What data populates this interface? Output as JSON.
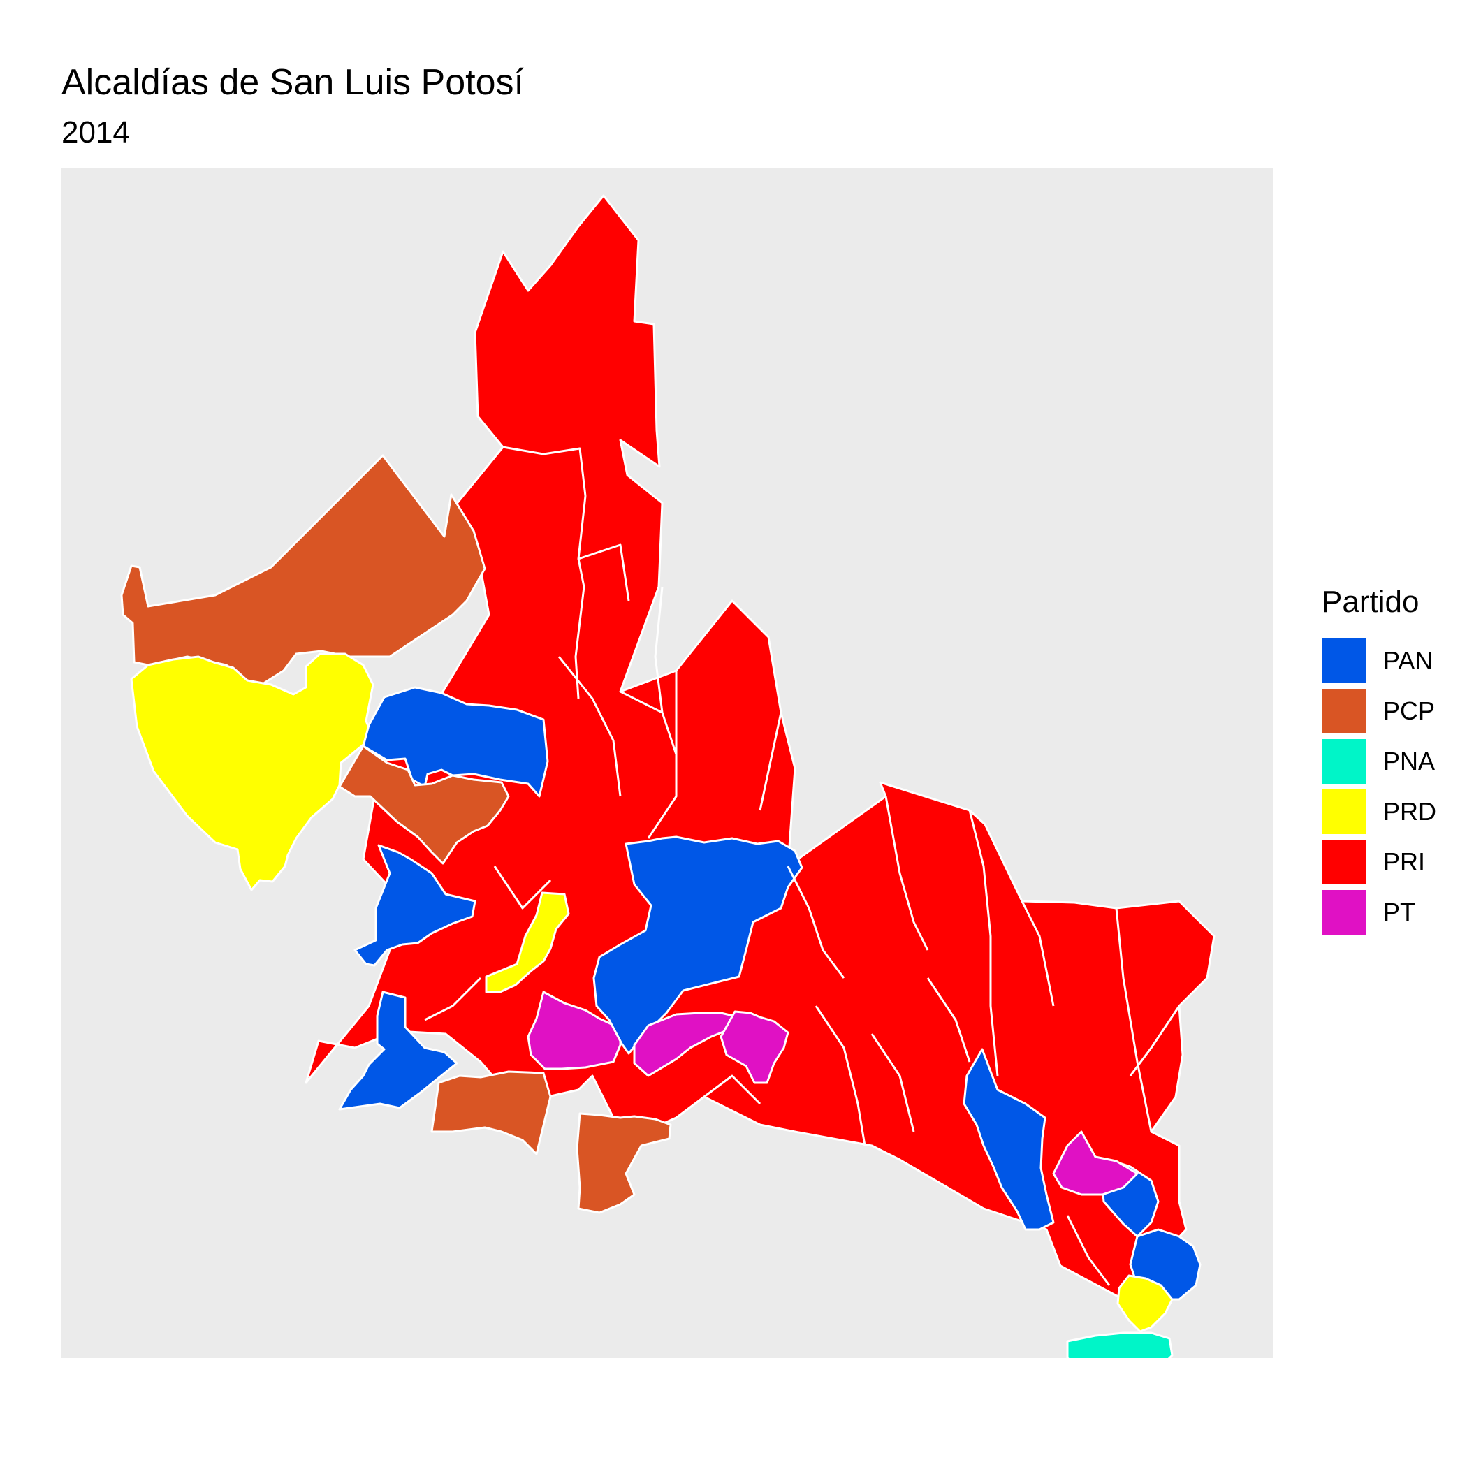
{
  "title": "Alcaldías de San Luis Potosí",
  "subtitle": "2014",
  "legend": {
    "title": "Partido",
    "items": [
      {
        "label": "PAN",
        "color": "#0057e7"
      },
      {
        "label": "PCP",
        "color": "#d95524"
      },
      {
        "label": "PNA",
        "color": "#00f5c8"
      },
      {
        "label": "PRD",
        "color": "#ffff00"
      },
      {
        "label": "PRI",
        "color": "#ff0000"
      },
      {
        "label": "PT",
        "color": "#e011c4"
      }
    ]
  },
  "chart_data": {
    "type": "choropleth",
    "title": "Alcaldías de San Luis Potosí",
    "subtitle": "2014",
    "legend_title": "Partido",
    "legend_position": "right",
    "grid": false,
    "categories": [
      "PAN",
      "PCP",
      "PNA",
      "PRD",
      "PRI",
      "PT"
    ],
    "colors": {
      "PAN": "#0057e7",
      "PCP": "#d95524",
      "PNA": "#00f5c8",
      "PRD": "#ffff00",
      "PRI": "#ff0000",
      "PT": "#e011c4"
    }
  }
}
